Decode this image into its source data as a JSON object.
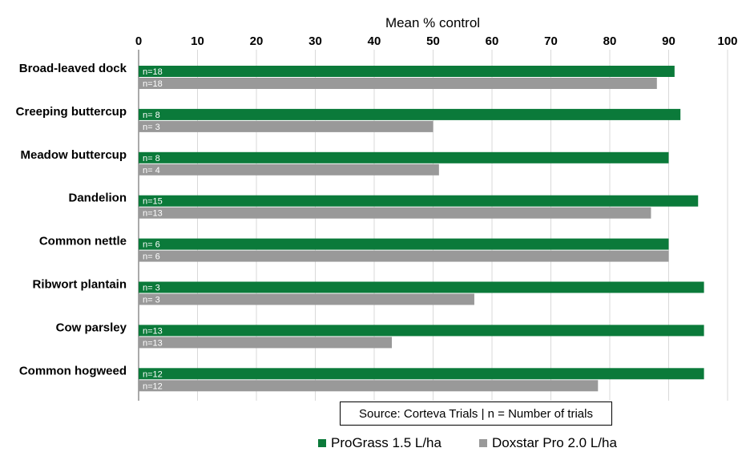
{
  "chart_data": {
    "type": "bar",
    "orientation": "horizontal",
    "xlabel": "Mean % control",
    "xlim": [
      0,
      100
    ],
    "xticks": [
      0,
      10,
      20,
      30,
      40,
      50,
      60,
      70,
      80,
      90,
      100
    ],
    "grid": true,
    "legend_position": "bottom",
    "categories": [
      "Broad-leaved dock",
      "Creeping buttercup",
      "Meadow buttercup",
      "Dandelion",
      "Common nettle",
      "Ribwort plantain",
      "Cow parsley",
      "Common hogweed"
    ],
    "series": [
      {
        "name": "ProGrass 1.5 L/ha",
        "color": "#0b7a3a",
        "values": [
          91,
          92,
          90,
          95,
          90,
          96,
          96,
          96
        ],
        "labels": [
          "n=18",
          "n= 8",
          "n= 8",
          "n=15",
          "n= 6",
          "n= 3",
          "n=13",
          "n=12"
        ]
      },
      {
        "name": "Doxstar Pro 2.0 L/ha",
        "color": "#999999",
        "values": [
          88,
          50,
          51,
          87,
          90,
          57,
          43,
          78
        ],
        "labels": [
          "n=18",
          "n= 3",
          "n= 4",
          "n=13",
          "n= 6",
          "n= 3",
          "n=13",
          "n=12"
        ]
      }
    ],
    "annotation": "Source: Corteva Trials | n = Number of trials"
  }
}
